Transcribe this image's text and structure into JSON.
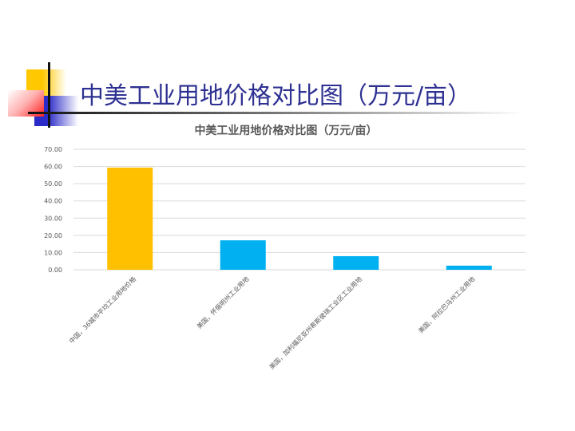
{
  "slide": {
    "title": "中美工业用地价格对比图（万元/亩）"
  },
  "chart_data": {
    "type": "bar",
    "title": "中美工业用地价格对比图（万元/亩）",
    "categories": [
      "中国，36城市平均工业用地价格",
      "美国，怀俄明州工业用地",
      "美国，加利福尼亚州希斯彼瑞工业区工业用地",
      "美国，阿拉巴马州工业用地"
    ],
    "values": [
      59.3,
      17.1,
      7.9,
      2.4
    ],
    "bar_colors": [
      "#ffc000",
      "#00b0f0",
      "#00b0f0",
      "#00b0f0"
    ],
    "ylim": [
      0,
      70
    ],
    "yticks": [
      "0.00",
      "10.00",
      "20.00",
      "30.00",
      "40.00",
      "50.00",
      "60.00",
      "70.00"
    ],
    "grid": true,
    "xlabel": "",
    "ylabel": ""
  }
}
